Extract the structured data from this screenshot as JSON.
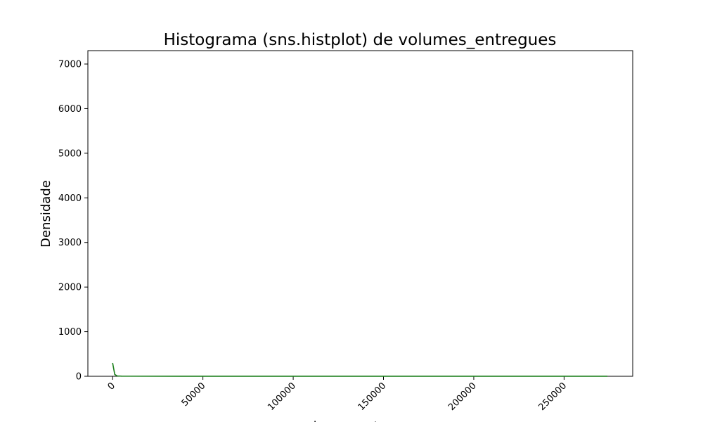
{
  "chart_data": {
    "type": "line",
    "title": "Histograma (sns.histplot) de volumes_entregues",
    "xlabel": "volumes_entregues",
    "ylabel": "Densidade",
    "xlim": [
      -13700,
      288000
    ],
    "ylim": [
      0,
      7300
    ],
    "x_ticks": [
      0,
      50000,
      100000,
      150000,
      200000,
      250000
    ],
    "y_ticks": [
      0,
      1000,
      2000,
      3000,
      4000,
      5000,
      6000,
      7000
    ],
    "grid": false,
    "legend": "none",
    "series": [
      {
        "color": "#1a7f1a",
        "x": [
          0,
          1200,
          2500,
          5000,
          10000,
          50000,
          100000,
          150000,
          200000,
          250000,
          274000
        ],
        "y": [
          300,
          40,
          8,
          3,
          2,
          1,
          1,
          1,
          1,
          1,
          1
        ]
      }
    ]
  }
}
